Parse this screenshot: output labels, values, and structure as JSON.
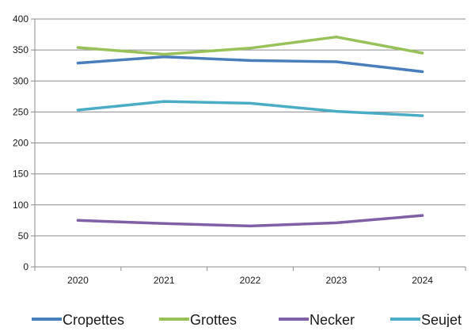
{
  "chart_data": {
    "type": "line",
    "title": "",
    "xlabel": "",
    "ylabel": "",
    "categories": [
      "2020",
      "2021",
      "2022",
      "2023",
      "2024"
    ],
    "ylim": [
      0,
      400
    ],
    "yticks": [
      0,
      50,
      100,
      150,
      200,
      250,
      300,
      350,
      400
    ],
    "grid": "horizontal",
    "legend_position": "bottom",
    "series": [
      {
        "name": "Cropettes",
        "color": "#4a7ebb",
        "values": [
          329,
          339,
          333,
          331,
          315
        ]
      },
      {
        "name": "Grottes",
        "color": "#98c15a",
        "values": [
          354,
          343,
          353,
          371,
          345
        ]
      },
      {
        "name": "Necker",
        "color": "#7f5fa6",
        "values": [
          75,
          70,
          66,
          71,
          83
        ]
      },
      {
        "name": "Seujet",
        "color": "#4bacc6",
        "values": [
          253,
          267,
          264,
          251,
          244
        ]
      }
    ]
  }
}
